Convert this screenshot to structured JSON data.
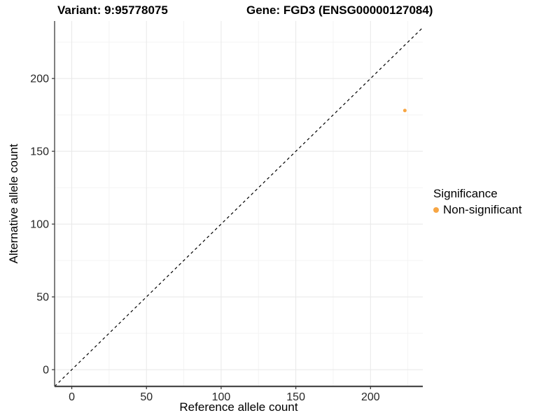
{
  "header": {
    "variant_title": "Variant: 9:95778075",
    "gene_title": "Gene: FGD3 (ENSG00000127084)"
  },
  "chart_data": {
    "type": "scatter",
    "xlabel": "Reference allele count",
    "ylabel": "Alternative allele count",
    "xlim": [
      -11.5,
      235
    ],
    "ylim": [
      -11.5,
      239.5
    ],
    "x_ticks": [
      0,
      50,
      100,
      150,
      200
    ],
    "y_ticks": [
      0,
      50,
      100,
      150,
      200
    ],
    "x_minor_ticks": [
      25,
      75,
      125,
      175,
      225
    ],
    "y_minor_ticks": [
      25,
      75,
      125,
      175,
      225
    ],
    "grid": true,
    "background_color": "#FFFFFF",
    "grid_major_color": "#E8E8E8",
    "grid_minor_color": "#F4F4F4",
    "axis_line_color": "#4A4A4A",
    "tick_label_color": "#262626",
    "identity_line": {
      "style": "dashed",
      "equation": "y = x",
      "color": "#000000"
    },
    "series": [
      {
        "name": "Non-significant",
        "color": "#F7A644",
        "points": [
          {
            "x": 223,
            "y": 178
          }
        ]
      }
    ],
    "legend": {
      "title": "Significance",
      "position": "right",
      "items": [
        {
          "label": "Non-significant",
          "color": "#F7A644"
        }
      ]
    }
  }
}
